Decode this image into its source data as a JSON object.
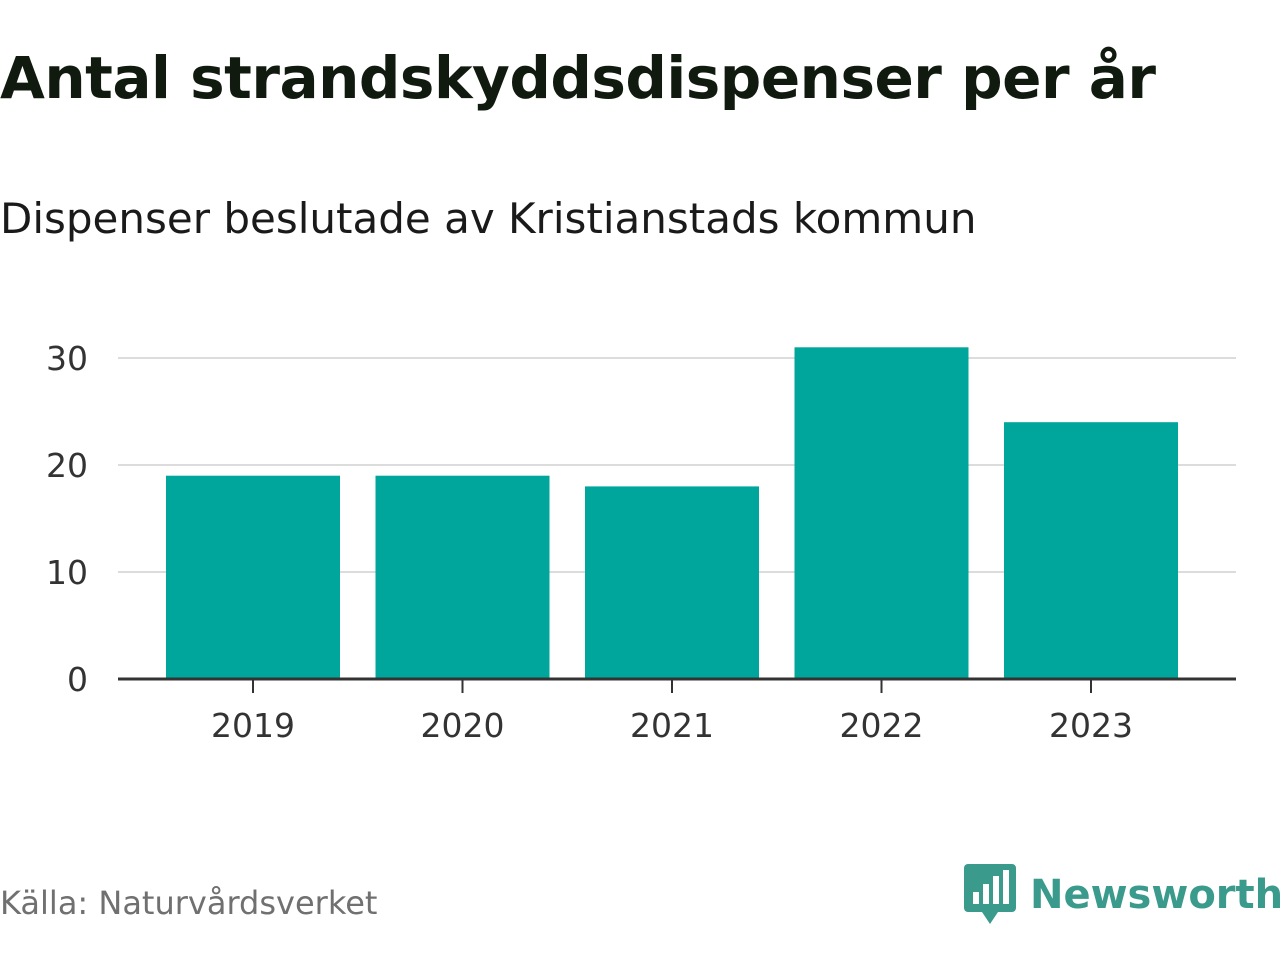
{
  "chart_data": {
    "type": "bar",
    "title": "Antal strandskyddsdispenser per år",
    "subtitle": "Dispenser beslutade av Kristianstads kommun",
    "categories": [
      "2019",
      "2020",
      "2021",
      "2022",
      "2023"
    ],
    "values": [
      19,
      19,
      18,
      31,
      24
    ],
    "xlabel": "",
    "ylabel": "",
    "ylim": [
      0,
      30
    ],
    "yticks": [
      0,
      10,
      20,
      30
    ],
    "grid": true,
    "bar_color": "#00a59b"
  },
  "source": "Källa: Naturvårdsverket",
  "brand": {
    "name": "Newsworthy",
    "color": "#3a9a8c",
    "icon": "chart-speech-bubble-icon"
  }
}
